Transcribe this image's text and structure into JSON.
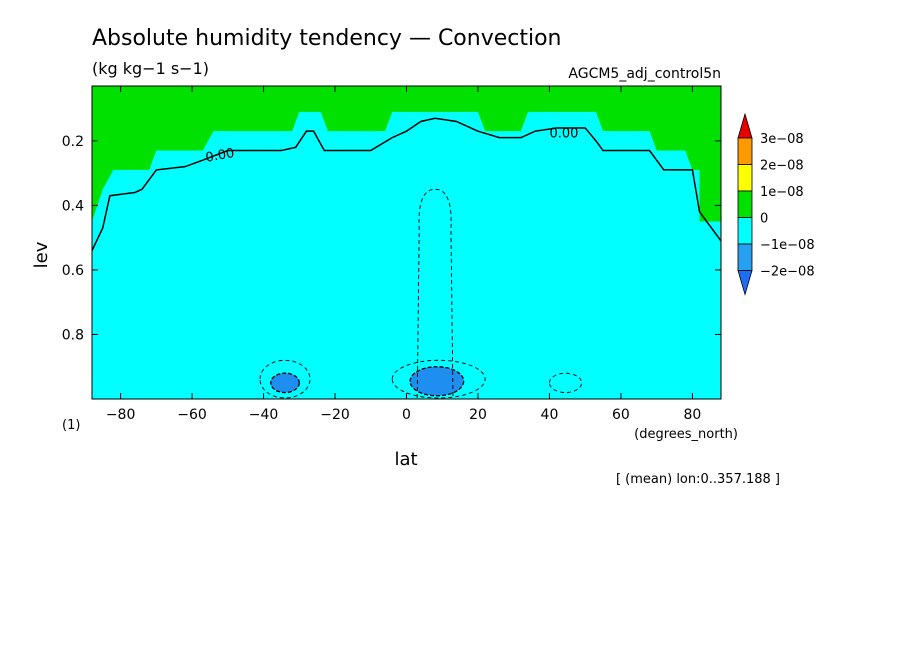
{
  "chart_data": {
    "type": "heatmap",
    "title": "Absolute humidity tendency — Convection",
    "subtitle": "(kg kg−1 s−1)",
    "experiment": "AGCM5_adj_control5n",
    "xlabel": "lat",
    "xunits": "(degrees_north)",
    "ylabel": "lev",
    "yunits": "(1)",
    "footnote": "[ (mean) lon:0..357.188 ]",
    "xlim": [
      -88,
      88
    ],
    "ylim": [
      1.0,
      0.03
    ],
    "x_ticks": [
      "−80",
      "−60",
      "−40",
      "−20",
      "0",
      "20",
      "40",
      "60",
      "80"
    ],
    "x_tick_values": [
      -80,
      -60,
      -40,
      -20,
      0,
      20,
      40,
      60,
      80
    ],
    "y_ticks": [
      "0.2",
      "0.4",
      "0.6",
      "0.8"
    ],
    "y_tick_values": [
      0.2,
      0.4,
      0.6,
      0.8
    ],
    "contour_labels": [
      "0.00",
      "0.00"
    ],
    "colorbar": {
      "labels": [
        "3e−08",
        "2e−08",
        "1e−08",
        "0",
        "−1e−08",
        "−2e−08"
      ],
      "colors": [
        "#1e6ef0",
        "#28a0f0",
        "#00ffff",
        "#00e100",
        "#ffff00",
        "#ff9900",
        "#e80000"
      ]
    },
    "green_region_boundary": [
      [
        -88,
        0.45
      ],
      [
        -85,
        0.35
      ],
      [
        -82,
        0.29
      ],
      [
        -72,
        0.29
      ],
      [
        -70,
        0.23
      ],
      [
        -57,
        0.23
      ],
      [
        -54,
        0.17
      ],
      [
        -32,
        0.17
      ],
      [
        -30,
        0.11
      ],
      [
        -24,
        0.11
      ],
      [
        -22,
        0.17
      ],
      [
        -6,
        0.17
      ],
      [
        -4,
        0.11
      ],
      [
        20,
        0.11
      ],
      [
        22,
        0.17
      ],
      [
        32,
        0.17
      ],
      [
        34,
        0.11
      ],
      [
        53,
        0.11
      ],
      [
        55,
        0.17
      ],
      [
        68,
        0.17
      ],
      [
        70,
        0.23
      ],
      [
        78,
        0.23
      ],
      [
        80,
        0.29
      ],
      [
        82,
        0.29
      ],
      [
        82,
        0.45
      ],
      [
        88,
        0.45
      ]
    ],
    "zero_contour": [
      [
        -88,
        0.54
      ],
      [
        -85,
        0.47
      ],
      [
        -83,
        0.37
      ],
      [
        -76,
        0.36
      ],
      [
        -74,
        0.35
      ],
      [
        -70,
        0.29
      ],
      [
        -62,
        0.28
      ],
      [
        -57,
        0.26
      ],
      [
        -50,
        0.23
      ],
      [
        -35,
        0.23
      ],
      [
        -31,
        0.22
      ],
      [
        -28,
        0.17
      ],
      [
        -26,
        0.17
      ],
      [
        -23,
        0.23
      ],
      [
        -10,
        0.23
      ],
      [
        -4,
        0.19
      ],
      [
        0,
        0.17
      ],
      [
        4,
        0.14
      ],
      [
        8,
        0.13
      ],
      [
        14,
        0.14
      ],
      [
        20,
        0.17
      ],
      [
        26,
        0.19
      ],
      [
        32,
        0.19
      ],
      [
        36,
        0.17
      ],
      [
        42,
        0.16
      ],
      [
        50,
        0.16
      ],
      [
        53,
        0.2
      ],
      [
        55,
        0.23
      ],
      [
        68,
        0.23
      ],
      [
        72,
        0.29
      ],
      [
        80,
        0.29
      ],
      [
        82,
        0.42
      ],
      [
        88,
        0.51
      ]
    ],
    "neg1e8_regions": [
      {
        "x": [
          -38,
          -30
        ],
        "y": [
          0.92,
          0.98
        ]
      },
      {
        "x": [
          1,
          16
        ],
        "y": [
          0.9,
          0.99
        ]
      }
    ],
    "dashed_contours": [
      {
        "x": [
          3,
          13
        ],
        "y": [
          0.35,
          1.0
        ]
      },
      {
        "x": [
          -41,
          -27
        ],
        "y": [
          0.88,
          1.0
        ]
      },
      {
        "x": [
          -4,
          22
        ],
        "y": [
          0.88,
          1.0
        ]
      },
      {
        "x": [
          40,
          49
        ],
        "y": [
          0.92,
          0.98
        ]
      }
    ]
  }
}
